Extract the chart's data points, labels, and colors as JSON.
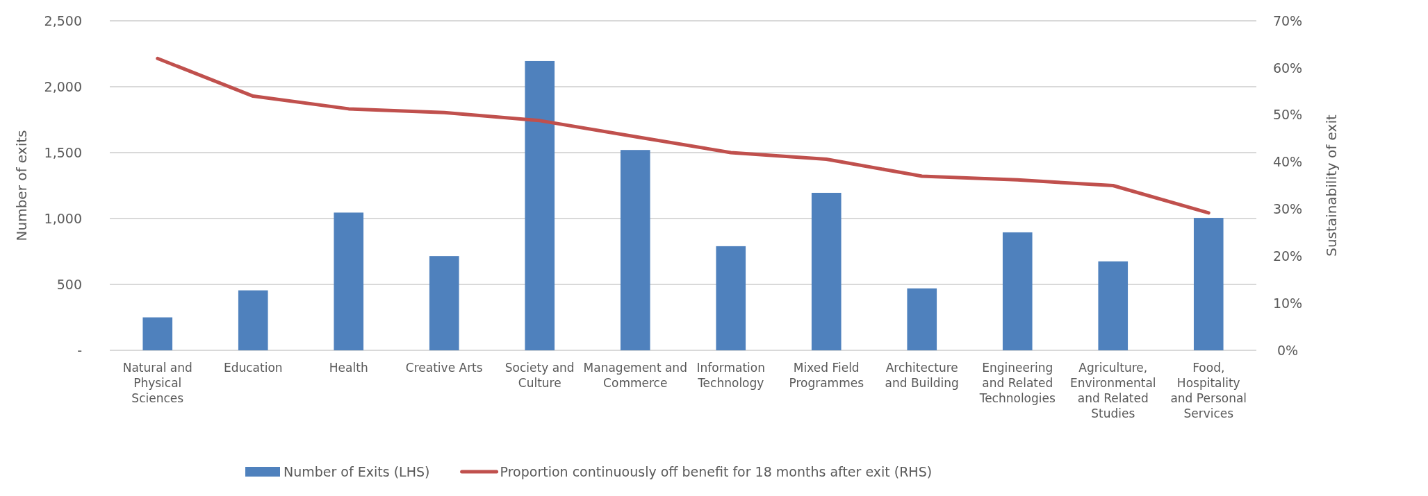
{
  "chart_data": {
    "type": "bar",
    "ylabel": "Number of exits",
    "y2label": "Sustainability of exit",
    "categories": [
      "Natural and Physical Sciences",
      "Education",
      "Health",
      "Creative Arts",
      "Society and Culture",
      "Management and Commerce",
      "Information Technology",
      "Mixed Field Programmes",
      "Architecture and Building",
      "Engineering and Related Technologies",
      "Agriculture, Environmental and Related Studies",
      "Food, Hospitality and Personal Services"
    ],
    "series": [
      {
        "name": "Number of Exits (LHS)",
        "color": "#4f81bd",
        "values": [
          250,
          455,
          1045,
          715,
          2195,
          1520,
          790,
          1195,
          470,
          895,
          675,
          1005
        ]
      },
      {
        "name": "Proportion continuously off benefit for 18 months after exit (RHS)",
        "type": "line",
        "axis": "y2",
        "color": "#c0504d",
        "values": [
          62,
          54,
          51.3,
          50.5,
          48.8,
          45.4,
          42,
          40.6,
          37,
          36.2,
          35,
          29.2
        ]
      }
    ],
    "ylim": [
      0,
      2500
    ],
    "yticks": [
      {
        "value": 0,
        "label": "-"
      },
      {
        "value": 500,
        "label": "500"
      },
      {
        "value": 1000,
        "label": "1,000"
      },
      {
        "value": 1500,
        "label": "1,500"
      },
      {
        "value": 2000,
        "label": "2,000"
      },
      {
        "value": 2500,
        "label": "2,500"
      }
    ],
    "y2lim": [
      0,
      70
    ],
    "y2ticks": [
      {
        "value": 0,
        "label": "0%"
      },
      {
        "value": 10,
        "label": "10%"
      },
      {
        "value": 20,
        "label": "20%"
      },
      {
        "value": 30,
        "label": "30%"
      },
      {
        "value": 40,
        "label": "40%"
      },
      {
        "value": 50,
        "label": "50%"
      },
      {
        "value": 60,
        "label": "60%"
      },
      {
        "value": 70,
        "label": "70%"
      }
    ],
    "grid": "y",
    "legend": "bottom"
  }
}
